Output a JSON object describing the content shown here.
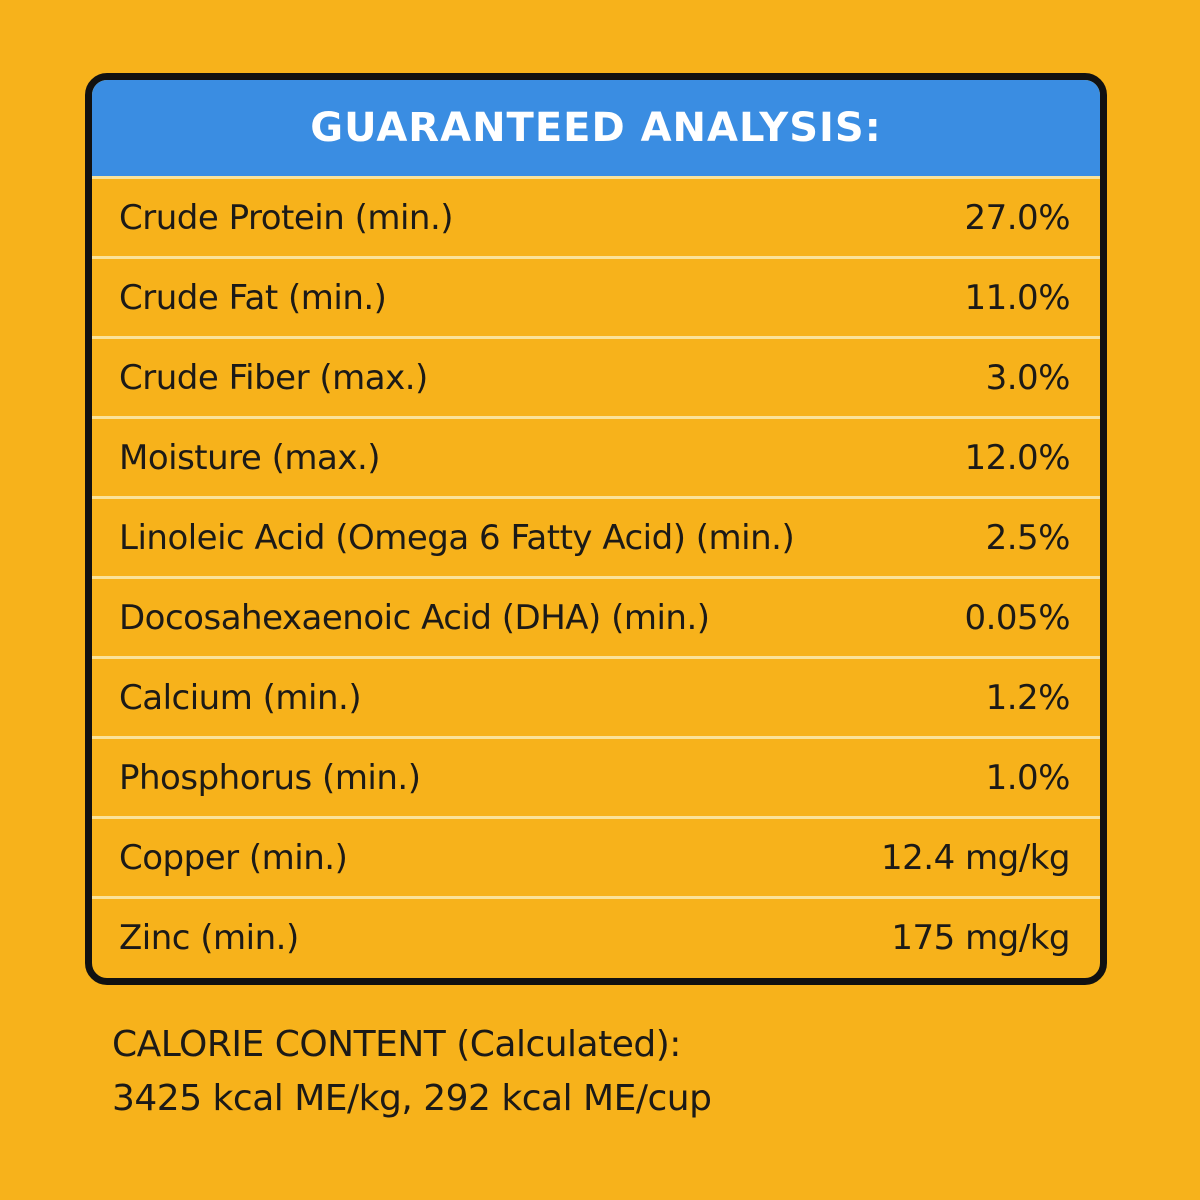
{
  "title": "GUARANTEED ANALYSIS:",
  "rows": [
    {
      "label": "Crude Protein (min.)",
      "value": "27.0%"
    },
    {
      "label": "Crude Fat (min.)",
      "value": "11.0%"
    },
    {
      "label": "Crude Fiber (max.)",
      "value": "3.0%"
    },
    {
      "label": "Moisture (max.)",
      "value": "12.0%"
    },
    {
      "label": "Linoleic Acid (Omega 6 Fatty Acid) (min.)",
      "value": "2.5%"
    },
    {
      "label": "Docosahexaenoic Acid (DHA) (min.)",
      "value": "0.05%"
    },
    {
      "label": "Calcium (min.)",
      "value": "1.2%"
    },
    {
      "label": "Phosphorus (min.)",
      "value": "1.0%"
    },
    {
      "label": "Copper (min.)",
      "value": "12.4 mg/kg"
    },
    {
      "label": "Zinc (min.)",
      "value": "175 mg/kg"
    }
  ],
  "calorie": {
    "heading": "CALORIE CONTENT (Calculated):",
    "value": "3425 kcal ME/kg, 292 kcal ME/cup"
  },
  "colors": {
    "background": "#f7b21b",
    "header": "#3a8de2",
    "border": "#111111",
    "divider": "#fbe39a",
    "text": "#1c1a17"
  }
}
